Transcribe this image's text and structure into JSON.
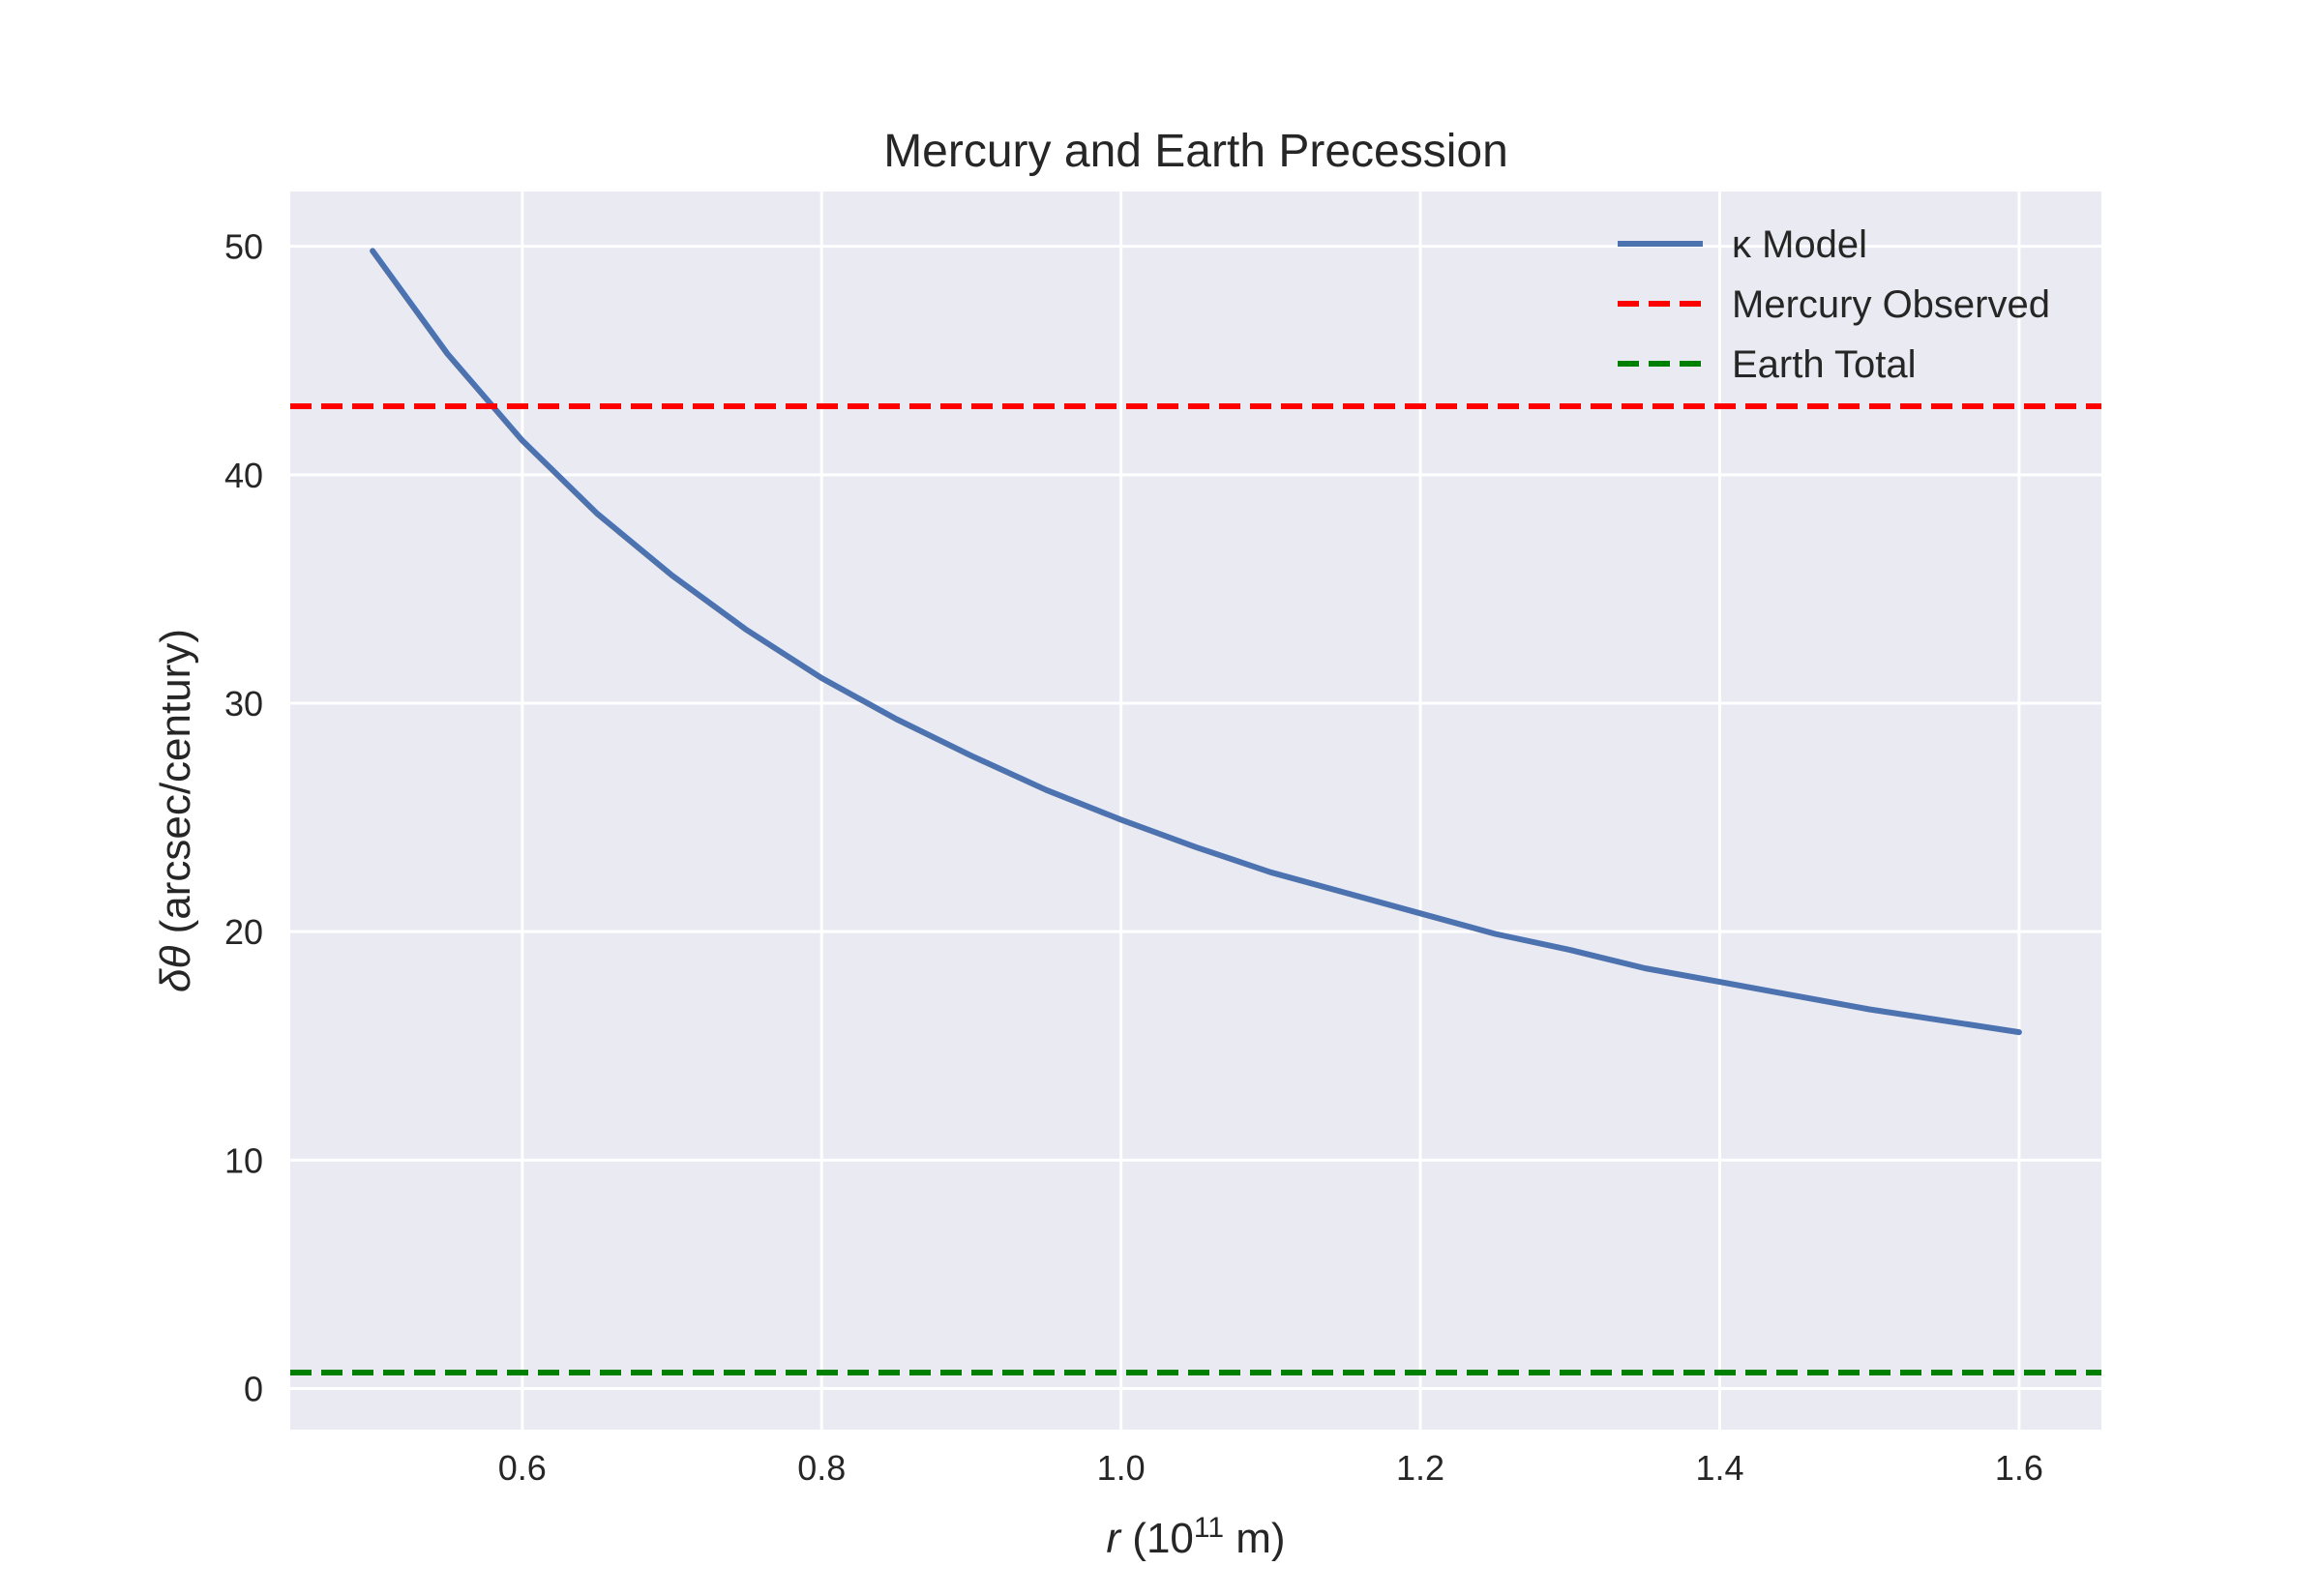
{
  "chart_data": {
    "type": "line",
    "title": "Mercury and Earth Precession",
    "xlabel": {
      "var": "r",
      "prefix": " (10",
      "exp": "11",
      "suffix": " m)"
    },
    "ylabel": {
      "var": "δθ",
      "suffix": " (arcsec/century)"
    },
    "xlim": [
      0.445,
      1.655
    ],
    "ylim": [
      -1.8,
      52.4
    ],
    "xticks": [
      {
        "value": 0.6,
        "label": "0.6"
      },
      {
        "value": 0.8,
        "label": "0.8"
      },
      {
        "value": 1.0,
        "label": "1.0"
      },
      {
        "value": 1.2,
        "label": "1.2"
      },
      {
        "value": 1.4,
        "label": "1.4"
      },
      {
        "value": 1.6,
        "label": "1.6"
      }
    ],
    "yticks": [
      {
        "value": 0,
        "label": "0"
      },
      {
        "value": 10,
        "label": "10"
      },
      {
        "value": 20,
        "label": "20"
      },
      {
        "value": 30,
        "label": "30"
      },
      {
        "value": 40,
        "label": "40"
      },
      {
        "value": 50,
        "label": "50"
      }
    ],
    "grid": true,
    "legend_position": "top-right",
    "series": [
      {
        "name": "κ Model",
        "style": "solid",
        "color": "#4c72b0",
        "x": [
          0.5,
          0.55,
          0.6,
          0.65,
          0.7,
          0.75,
          0.8,
          0.85,
          0.9,
          0.95,
          1.0,
          1.05,
          1.1,
          1.15,
          1.2,
          1.25,
          1.3,
          1.35,
          1.4,
          1.45,
          1.5,
          1.55,
          1.6
        ],
        "y": [
          49.8,
          45.3,
          41.5,
          38.3,
          35.6,
          33.2,
          31.1,
          29.3,
          27.7,
          26.2,
          24.9,
          23.7,
          22.6,
          21.7,
          20.8,
          19.9,
          19.2,
          18.4,
          17.8,
          17.2,
          16.6,
          16.1,
          15.6
        ]
      },
      {
        "name": "Mercury Observed",
        "style": "dashed",
        "color": "#ff0000",
        "hline": 43.0
      },
      {
        "name": "Earth Total",
        "style": "dashed",
        "color": "#008000",
        "hline": 0.7
      }
    ]
  }
}
